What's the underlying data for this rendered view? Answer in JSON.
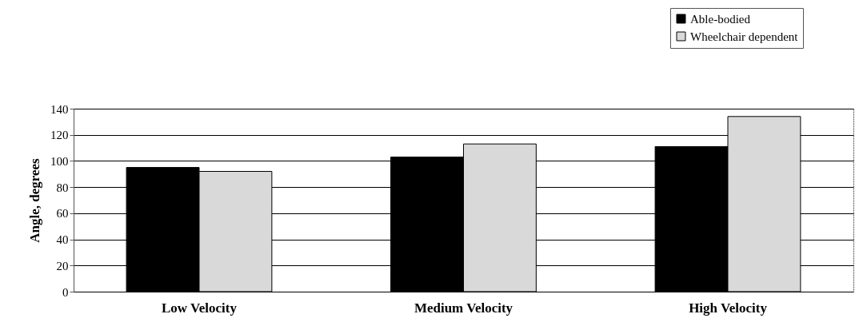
{
  "chart_data": {
    "type": "bar",
    "ylabel": "Angle, degrees",
    "categories": [
      "Low Velocity",
      "Medium Velocity",
      "High Velocity"
    ],
    "series": [
      {
        "name": "Able-bodied",
        "color": "#000000",
        "values": [
          95,
          103,
          111
        ]
      },
      {
        "name": "Wheelchair dependent",
        "color": "#d9d9d9",
        "values": [
          92,
          113,
          134
        ]
      }
    ],
    "ylim": [
      0,
      140
    ],
    "yticks": [
      0,
      20,
      40,
      60,
      80,
      100,
      120,
      140
    ],
    "grid": "y",
    "legend": "top right"
  }
}
